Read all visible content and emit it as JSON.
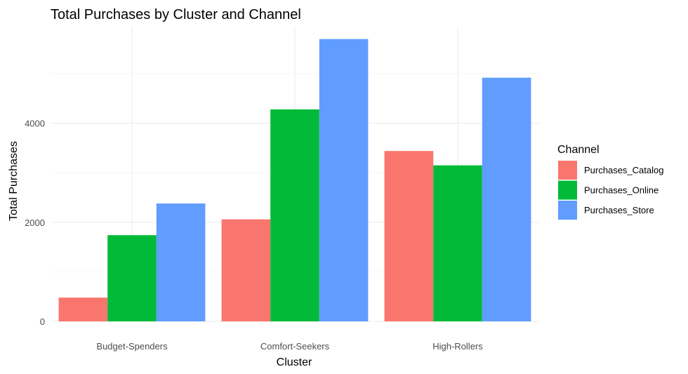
{
  "chart_data": {
    "type": "bar",
    "title": "Total Purchases by Cluster and Channel",
    "xlabel": "Cluster",
    "ylabel": "Total Purchases",
    "categories": [
      "Budget-Spenders",
      "Comfort-Seekers",
      "High-Rollers"
    ],
    "series": [
      {
        "name": "Purchases_Catalog",
        "color": "#F8766D",
        "values": [
          480,
          2060,
          3440
        ]
      },
      {
        "name": "Purchases_Online",
        "color": "#00BA38",
        "values": [
          1740,
          4280,
          3150
        ]
      },
      {
        "name": "Purchases_Store",
        "color": "#619CFF",
        "values": [
          2380,
          5700,
          4920
        ]
      }
    ],
    "ylim": [
      0,
      5950
    ],
    "yticks": [
      0,
      2000,
      4000
    ],
    "grid": true,
    "legend": {
      "title": "Channel",
      "position": "right"
    }
  }
}
